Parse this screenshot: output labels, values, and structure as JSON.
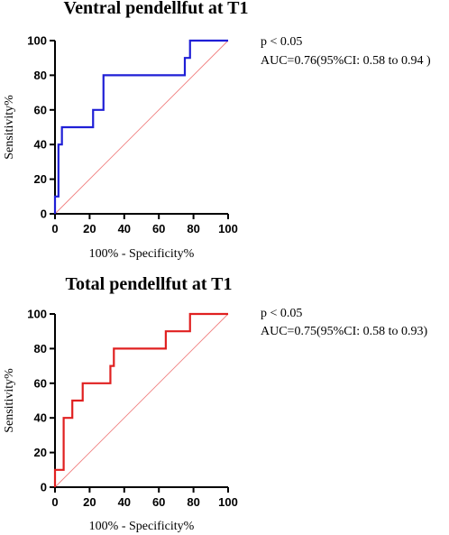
{
  "chart_data": [
    {
      "type": "line",
      "title": "Ventral pendellfut at T1",
      "xlabel": "100% - Specificity%",
      "ylabel": "Sensitivity%",
      "xlim": [
        0,
        100
      ],
      "ylim": [
        0,
        100
      ],
      "xticks": [
        0,
        20,
        40,
        60,
        80,
        100
      ],
      "yticks": [
        0,
        20,
        40,
        60,
        80,
        100
      ],
      "annotations": [
        "p < 0.05",
        "AUC=0.76(95%CI: 0.58 to 0.94 )"
      ],
      "series": [
        {
          "color": "#1f1fd6",
          "x": [
            0,
            0,
            2,
            2,
            4,
            4,
            22,
            22,
            28,
            28,
            75,
            75,
            78,
            78,
            100
          ],
          "y": [
            0,
            10,
            10,
            40,
            40,
            50,
            50,
            60,
            60,
            80,
            80,
            90,
            90,
            100,
            100
          ]
        }
      ],
      "reference_line": {
        "color": "#f08080",
        "x": [
          0,
          100
        ],
        "y": [
          0,
          100
        ]
      }
    },
    {
      "type": "line",
      "title": "Total pendellfut at T1",
      "xlabel": "100% - Specificity%",
      "ylabel": "Sensitivity%",
      "xlim": [
        0,
        100
      ],
      "ylim": [
        0,
        100
      ],
      "xticks": [
        0,
        20,
        40,
        60,
        80,
        100
      ],
      "yticks": [
        0,
        20,
        40,
        60,
        80,
        100
      ],
      "annotations": [
        "p < 0.05",
        "AUC=0.75(95%CI: 0.58 to 0.93)"
      ],
      "series": [
        {
          "color": "#e02020",
          "x": [
            0,
            0,
            5,
            5,
            10,
            10,
            16,
            16,
            32,
            32,
            34,
            34,
            64,
            64,
            78,
            78,
            100
          ],
          "y": [
            0,
            10,
            10,
            40,
            40,
            50,
            50,
            60,
            60,
            70,
            70,
            80,
            80,
            90,
            90,
            100,
            100
          ]
        }
      ],
      "reference_line": {
        "color": "#f08080",
        "x": [
          0,
          100
        ],
        "y": [
          0,
          100
        ]
      }
    }
  ]
}
